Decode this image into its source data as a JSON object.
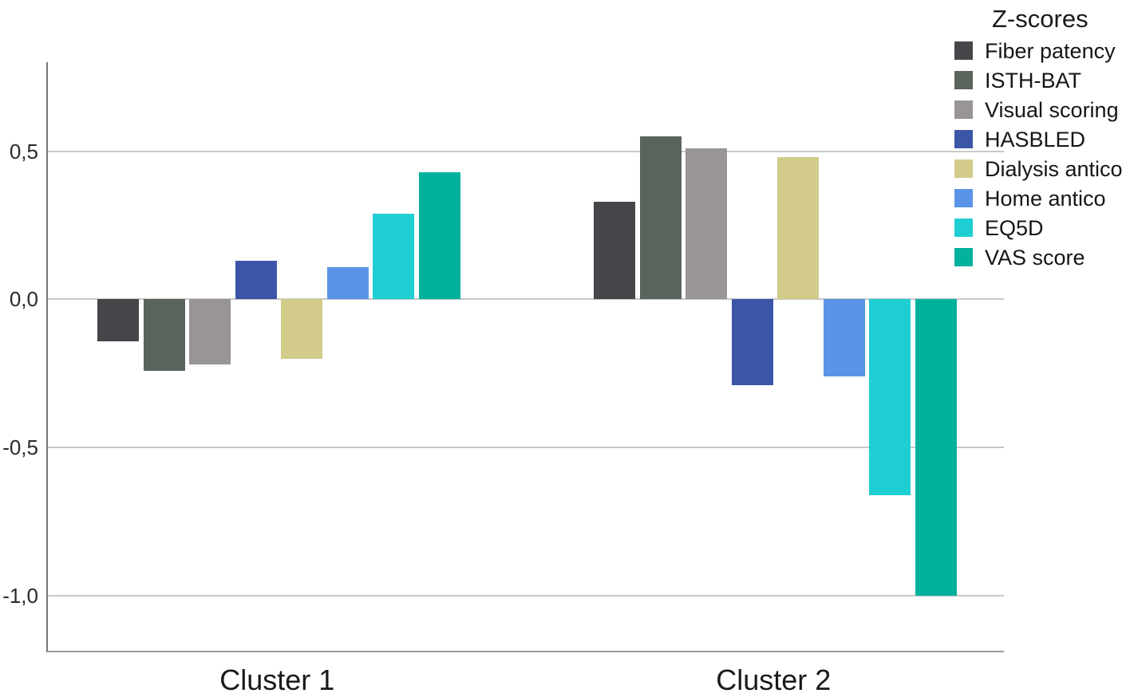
{
  "chart_data": {
    "type": "bar",
    "title": "",
    "legend_title": "Z-scores",
    "legend_position": "top-right",
    "categories": [
      "Cluster 1",
      "Cluster 2"
    ],
    "series": [
      {
        "name": "Fiber patency",
        "color": "#454649",
        "values": [
          -0.14,
          0.33
        ]
      },
      {
        "name": "ISTH-BAT",
        "color": "#5a635c",
        "values": [
          -0.24,
          0.55
        ]
      },
      {
        "name": "Visual scoring",
        "color": "#999495",
        "values": [
          -0.22,
          0.51
        ]
      },
      {
        "name": "HASBLED",
        "color": "#3b56a7",
        "values": [
          0.13,
          -0.29
        ]
      },
      {
        "name": "Dialysis antico",
        "color": "#d2cb89",
        "values": [
          -0.2,
          0.48
        ]
      },
      {
        "name": "Home antico",
        "color": "#5b94e7",
        "values": [
          0.11,
          -0.26
        ]
      },
      {
        "name": "EQ5D",
        "color": "#1fced2",
        "values": [
          0.29,
          -0.66
        ]
      },
      {
        "name": "VAS score",
        "color": "#00b19d",
        "values": [
          0.43,
          -1.0
        ]
      }
    ],
    "y_axis": {
      "ticks": [
        {
          "label": "0,5",
          "value": 0.5
        },
        {
          "label": "0,0",
          "value": 0.0
        },
        {
          "label": "-0,5",
          "value": -0.5
        },
        {
          "label": "-1,0",
          "value": -1.0
        }
      ],
      "range": [
        -1.19,
        0.8
      ],
      "grid": true,
      "decimal_separator": ","
    },
    "xlabel": "",
    "ylabel": ""
  },
  "colors": {
    "axis_left": "#757575",
    "axis_bottom": "#9c9c9c",
    "gridline": "#c8c8c8",
    "text": "#1e1e1e",
    "background": "#ffffff"
  }
}
